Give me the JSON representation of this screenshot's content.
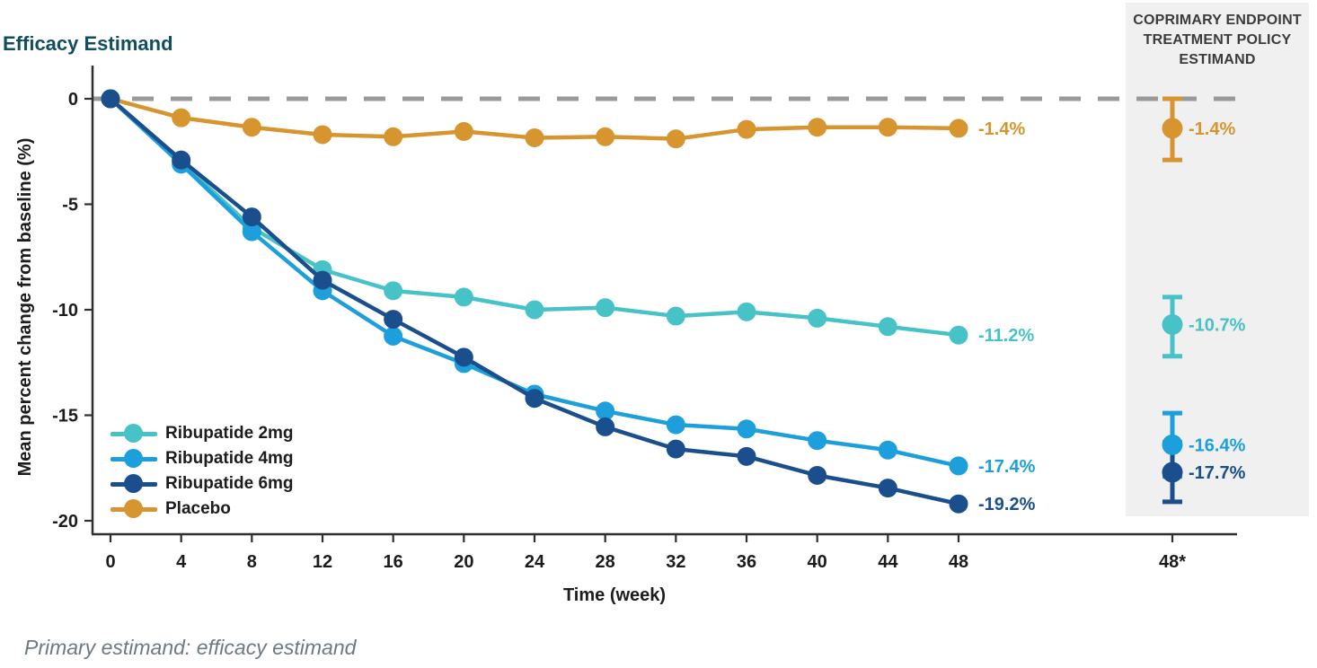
{
  "title": "Efficacy Estimand",
  "caption": "Primary estimand: efficacy estimand",
  "side_panel": {
    "header_lines": [
      "COPRIMARY ENDPOINT",
      "TREATMENT POLICY",
      "ESTIMAND"
    ],
    "x_tick_label": "48*",
    "background_color": "#f0f0f1"
  },
  "chart_data": {
    "type": "line",
    "title": "Efficacy Estimand",
    "xlabel": "Time (week)",
    "ylabel": "Mean percent change from baseline (%)",
    "x": [
      0,
      4,
      8,
      12,
      16,
      20,
      24,
      28,
      32,
      36,
      40,
      44,
      48
    ],
    "x_tick_labels": [
      "0",
      "4",
      "8",
      "12",
      "16",
      "20",
      "24",
      "28",
      "32",
      "36",
      "40",
      "44",
      "48"
    ],
    "y_ticks": [
      0,
      -5,
      -10,
      -15,
      -20
    ],
    "ylim": [
      -20.6,
      0.9
    ],
    "grid": false,
    "legend_position": "inside-bottom-left",
    "zero_reference_line": {
      "y": 0,
      "style": "dashed",
      "color": "#97999b"
    },
    "series": [
      {
        "name": "Ribupatide 2mg",
        "color": "#47c2c6",
        "end_label": "-11.2%",
        "values": [
          0,
          -3.0,
          -6.1,
          -8.1,
          -9.1,
          -9.4,
          -10.0,
          -9.9,
          -10.3,
          -10.1,
          -10.4,
          -10.8,
          -11.2
        ]
      },
      {
        "name": "Ribupatide 4mg",
        "color": "#1c9fdb",
        "end_label": "-17.4%",
        "values": [
          0,
          -3.1,
          -6.3,
          -9.1,
          -11.25,
          -12.55,
          -14.0,
          -14.8,
          -15.45,
          -15.65,
          -16.2,
          -16.65,
          -17.4
        ]
      },
      {
        "name": "Ribupatide 6mg",
        "color": "#1a4e8d",
        "end_label": "-19.2%",
        "values": [
          0,
          -2.9,
          -5.6,
          -8.6,
          -10.45,
          -12.25,
          -14.2,
          -15.55,
          -16.6,
          -16.95,
          -17.85,
          -18.45,
          -19.2
        ]
      },
      {
        "name": "Placebo",
        "color": "#d6952f",
        "end_label": "-1.4%",
        "values": [
          0,
          -0.9,
          -1.35,
          -1.7,
          -1.8,
          -1.55,
          -1.85,
          -1.8,
          -1.9,
          -1.45,
          -1.35,
          -1.35,
          -1.4
        ]
      }
    ],
    "endpoint_estimates": {
      "x_label": "48*",
      "points": [
        {
          "series": "Placebo",
          "value": -1.4,
          "label": "-1.4%",
          "ci": [
            0.0,
            -2.9
          ]
        },
        {
          "series": "Ribupatide 2mg",
          "value": -10.7,
          "label": "-10.7%",
          "ci": [
            -9.4,
            -12.2
          ]
        },
        {
          "series": "Ribupatide 4mg",
          "value": -16.4,
          "label": "-16.4%",
          "ci": [
            -14.9,
            -17.9
          ]
        },
        {
          "series": "Ribupatide 6mg",
          "value": -17.7,
          "label": "-17.7%",
          "ci": [
            -16.3,
            -19.1
          ]
        }
      ]
    }
  }
}
